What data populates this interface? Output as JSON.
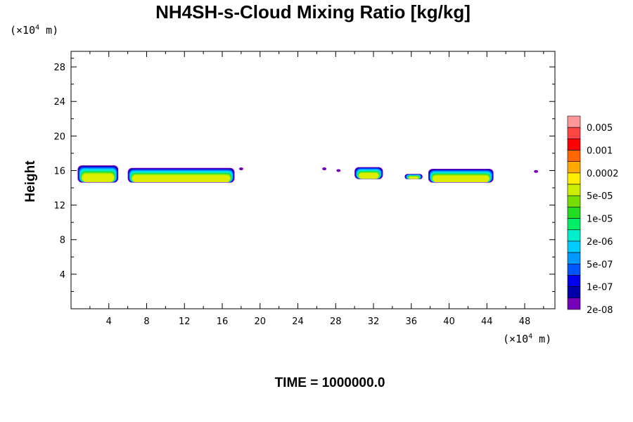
{
  "chart_data": {
    "type": "heatmap",
    "title": "NH4SH-s-Cloud Mixing Ratio [kg/kg]",
    "ylabel": "Height",
    "xlabel": "",
    "x_unit_label": "(×10",
    "x_unit_exp": "4",
    "x_unit_tail": " m)",
    "y_unit_label": "(×10",
    "y_unit_exp": "4",
    "y_unit_tail": " m)",
    "xlim": [
      0,
      51.2
    ],
    "ylim": [
      0,
      29.8
    ],
    "x_ticks": [
      "4",
      "8",
      "12",
      "16",
      "20",
      "24",
      "28",
      "32",
      "36",
      "40",
      "44",
      "48"
    ],
    "y_ticks": [
      "4",
      "8",
      "12",
      "16",
      "20",
      "24",
      "28"
    ],
    "legend_labels": [
      "0.005",
      "0.001",
      "0.0002",
      "5e-05",
      "1e-05",
      "2e-06",
      "5e-07",
      "1e-07",
      "2e-08"
    ],
    "legend_colors": [
      "#ff9999",
      "#ff4444",
      "#ff0000",
      "#ff6600",
      "#ffaa00",
      "#ffee00",
      "#ccee00",
      "#77dd00",
      "#22dd22",
      "#00ee66",
      "#00eecc",
      "#00ccff",
      "#0099ff",
      "#0055ff",
      "#0000ee",
      "#0000aa",
      "#7700bb"
    ],
    "cloud_bands": [
      {
        "x": [
          0.7,
          5.0
        ],
        "top": 16.6,
        "bottom": 14.6
      },
      {
        "x": [
          6.0,
          17.3
        ],
        "top": 16.3,
        "bottom": 14.6
      },
      {
        "x": [
          30.0,
          33.0
        ],
        "top": 16.4,
        "bottom": 15.0
      },
      {
        "x": [
          35.3,
          37.2
        ],
        "top": 15.6,
        "bottom": 15.0
      },
      {
        "x": [
          37.8,
          44.7
        ],
        "top": 16.2,
        "bottom": 14.6
      }
    ],
    "specks": [
      {
        "x": 18.0,
        "y": 16.2
      },
      {
        "x": 26.8,
        "y": 16.2
      },
      {
        "x": 28.3,
        "y": 16.0
      },
      {
        "x": 49.2,
        "y": 15.9
      }
    ],
    "time_label": "TIME = 1000000.0"
  }
}
